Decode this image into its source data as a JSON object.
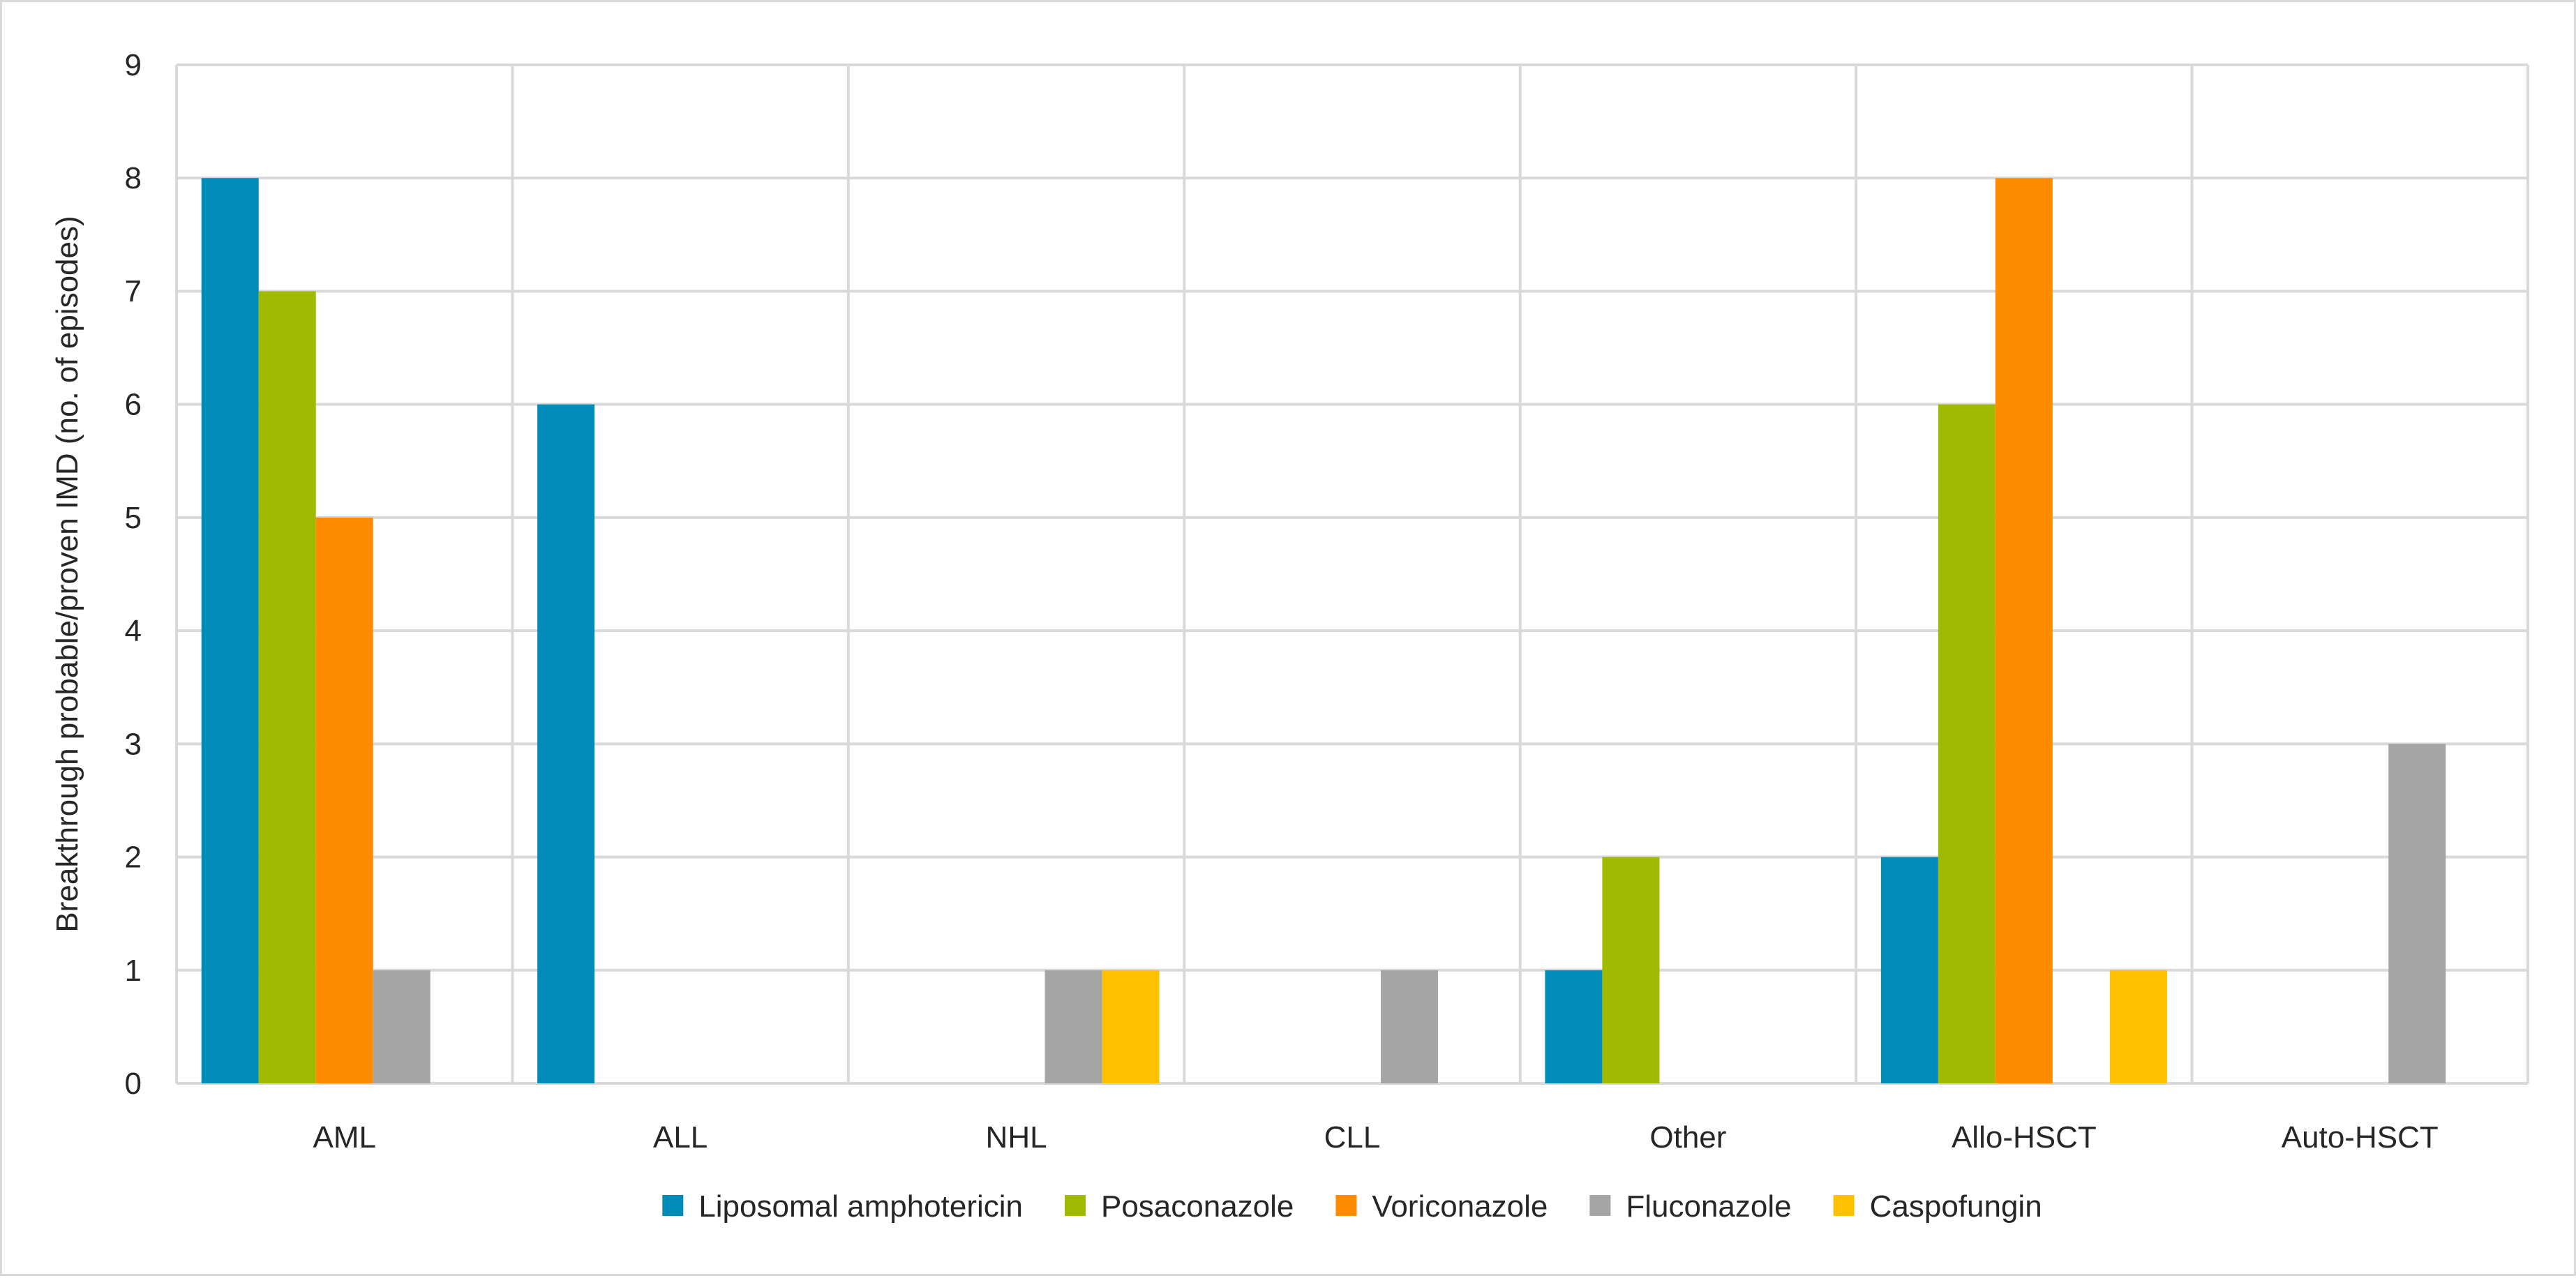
{
  "chart_data": {
    "type": "bar",
    "title": "",
    "xlabel": "",
    "ylabel": "Breakthrough probable/proven IMD (no. of episodes)",
    "ylim": [
      0,
      9
    ],
    "yticks": [
      0,
      1,
      2,
      3,
      4,
      5,
      6,
      7,
      8,
      9
    ],
    "grid": true,
    "legend_position": "bottom",
    "categories": [
      "AML",
      "ALL",
      "NHL",
      "CLL",
      "Other",
      "Allo-HSCT",
      "Auto-HSCT"
    ],
    "series": [
      {
        "name": "Liposomal amphotericin",
        "color": "#008bb8",
        "values": [
          8,
          6,
          0,
          0,
          1,
          2,
          0
        ]
      },
      {
        "name": "Posaconazole",
        "color": "#9fba00",
        "values": [
          7,
          0,
          0,
          0,
          2,
          6,
          0
        ]
      },
      {
        "name": "Voriconazole",
        "color": "#ff8c00",
        "values": [
          5,
          0,
          0,
          0,
          0,
          8,
          0
        ]
      },
      {
        "name": "Fluconazole",
        "color": "#a5a5a5",
        "values": [
          1,
          0,
          1,
          1,
          0,
          0,
          3
        ]
      },
      {
        "name": "Caspofungin",
        "color": "#ffc000",
        "values": [
          0,
          0,
          1,
          0,
          0,
          1,
          0
        ]
      }
    ]
  }
}
